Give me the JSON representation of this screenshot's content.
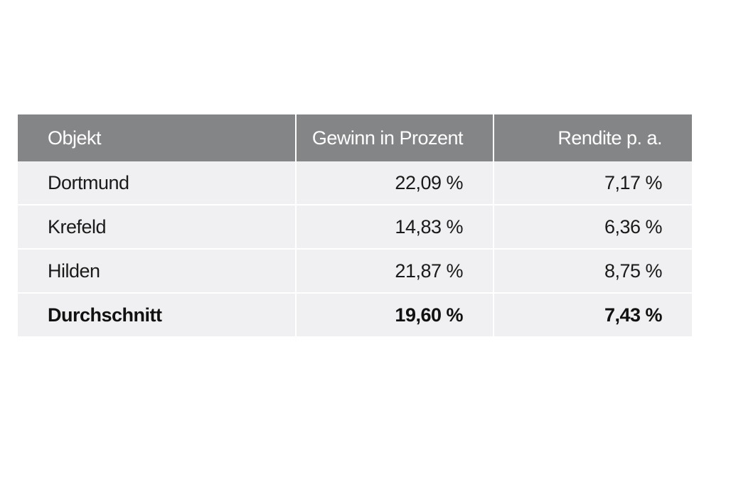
{
  "table": {
    "headers": [
      "Objekt",
      "Gewinn in Prozent",
      "Rendite p. a."
    ],
    "rows": [
      [
        "Dortmund",
        "22,09 %",
        "7,17 %"
      ],
      [
        "Krefeld",
        "14,83 %",
        "6,36 %"
      ],
      [
        "Hilden",
        "21,87 %",
        "8,75 %"
      ]
    ],
    "total": [
      "Durchschnitt",
      "19,60 %",
      "7,43 %"
    ]
  },
  "colors": {
    "header_bg": "#848587",
    "row_bg": "#f0f0f2",
    "header_text": "#ffffff"
  }
}
